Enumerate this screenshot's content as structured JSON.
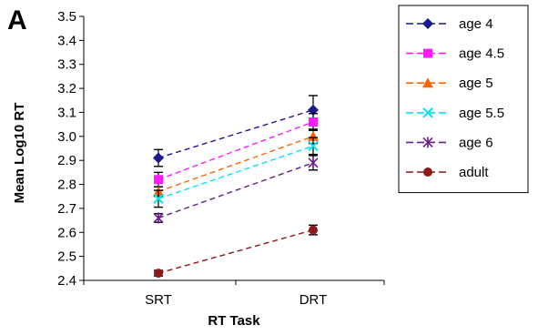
{
  "chart_data": {
    "type": "line",
    "panel_label": "A",
    "xlabel": "RT Task",
    "ylabel": "Mean Log10 RT",
    "categories": [
      "SRT",
      "DRT"
    ],
    "ylim": [
      2.4,
      3.5
    ],
    "yticks": [
      "2.4",
      "2.5",
      "2.6",
      "2.7",
      "2.8",
      "2.9",
      "3.0",
      "3.1",
      "3.2",
      "3.3",
      "3.4",
      "3.5"
    ],
    "grid": false,
    "legend_position": "right",
    "line_style": "dashed",
    "series": [
      {
        "name": "age 4",
        "values": [
          2.91,
          3.11
        ],
        "error": [
          0.035,
          0.06
        ],
        "color": "#1a1a8c",
        "marker": "diamond"
      },
      {
        "name": "age 4.5",
        "values": [
          2.82,
          3.06
        ],
        "error": [
          0.03,
          0.035
        ],
        "color": "#ff1aff",
        "marker": "square"
      },
      {
        "name": "age 5",
        "values": [
          2.77,
          3.0
        ],
        "error": [
          0.02,
          0.03
        ],
        "color": "#ff6600",
        "marker": "triangle"
      },
      {
        "name": "age 5.5",
        "values": [
          2.74,
          2.96
        ],
        "error": [
          0.035,
          0.035
        ],
        "color": "#00e5ee",
        "marker": "x"
      },
      {
        "name": "age 6",
        "values": [
          2.66,
          2.89
        ],
        "error": [
          0.018,
          0.03
        ],
        "color": "#6a1b8c",
        "marker": "asterisk"
      },
      {
        "name": "adult",
        "values": [
          2.43,
          2.61
        ],
        "error": [
          0.012,
          0.02
        ],
        "color": "#8b1a1a",
        "marker": "circle"
      }
    ]
  }
}
